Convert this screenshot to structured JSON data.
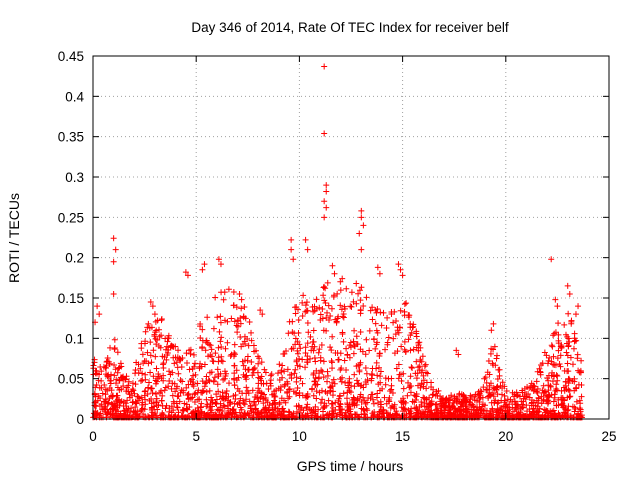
{
  "chart_data": {
    "type": "scatter",
    "title": "Day 346 of 2014, Rate Of TEC Index for receiver belf",
    "xlabel": "GPS time / hours",
    "ylabel": "ROTI / TECUs",
    "xlim": [
      0,
      25
    ],
    "ylim": [
      0,
      0.45
    ],
    "x_ticks": [
      0,
      5,
      10,
      15,
      20,
      25
    ],
    "y_ticks": [
      0,
      0.05,
      0.1,
      0.15,
      0.2,
      0.25,
      0.3,
      0.35,
      0.4,
      0.45
    ],
    "x_tick_labels": [
      "0",
      "5",
      "10",
      "15",
      "20",
      "25"
    ],
    "y_tick_labels": [
      "0",
      "0.05",
      "0.1",
      "0.15",
      "0.2",
      "0.25",
      "0.3",
      "0.35",
      "0.4",
      "0.45"
    ],
    "grid": true,
    "marker": "+",
    "marker_color": "#ff0000",
    "series": [
      {
        "name": "ROTI",
        "points": [
          [
            11.2,
            0.437
          ],
          [
            11.2,
            0.354
          ],
          [
            11.3,
            0.29
          ],
          [
            11.3,
            0.282
          ],
          [
            11.2,
            0.27
          ],
          [
            11.3,
            0.262
          ],
          [
            11.2,
            0.25
          ],
          [
            13.0,
            0.258
          ],
          [
            13.0,
            0.25
          ],
          [
            13.1,
            0.24
          ],
          [
            12.9,
            0.23
          ],
          [
            13.0,
            0.21
          ],
          [
            1.0,
            0.224
          ],
          [
            1.1,
            0.21
          ],
          [
            1.0,
            0.195
          ],
          [
            1.0,
            0.155
          ],
          [
            9.6,
            0.222
          ],
          [
            9.6,
            0.21
          ],
          [
            9.7,
            0.198
          ],
          [
            10.3,
            0.222
          ],
          [
            10.4,
            0.21
          ],
          [
            22.2,
            0.198
          ],
          [
            6.1,
            0.198
          ],
          [
            6.2,
            0.192
          ],
          [
            5.4,
            0.192
          ],
          [
            5.3,
            0.185
          ],
          [
            4.5,
            0.182
          ],
          [
            4.6,
            0.178
          ],
          [
            14.8,
            0.192
          ],
          [
            14.9,
            0.185
          ],
          [
            15.0,
            0.178
          ],
          [
            13.8,
            0.188
          ],
          [
            13.9,
            0.18
          ],
          [
            11.6,
            0.19
          ],
          [
            11.7,
            0.18
          ],
          [
            0.2,
            0.14
          ],
          [
            0.3,
            0.13
          ],
          [
            0.1,
            0.12
          ],
          [
            2.8,
            0.145
          ],
          [
            2.9,
            0.14
          ],
          [
            3.0,
            0.13
          ],
          [
            7.1,
            0.155
          ],
          [
            7.2,
            0.148
          ],
          [
            8.1,
            0.135
          ],
          [
            8.2,
            0.13
          ],
          [
            19.4,
            0.118
          ],
          [
            19.3,
            0.11
          ],
          [
            22.4,
            0.148
          ],
          [
            22.5,
            0.14
          ],
          [
            23.0,
            0.165
          ],
          [
            23.1,
            0.155
          ],
          [
            23.5,
            0.14
          ],
          [
            23.4,
            0.13
          ],
          [
            17.6,
            0.085
          ],
          [
            17.7,
            0.08
          ]
        ]
      }
    ]
  }
}
